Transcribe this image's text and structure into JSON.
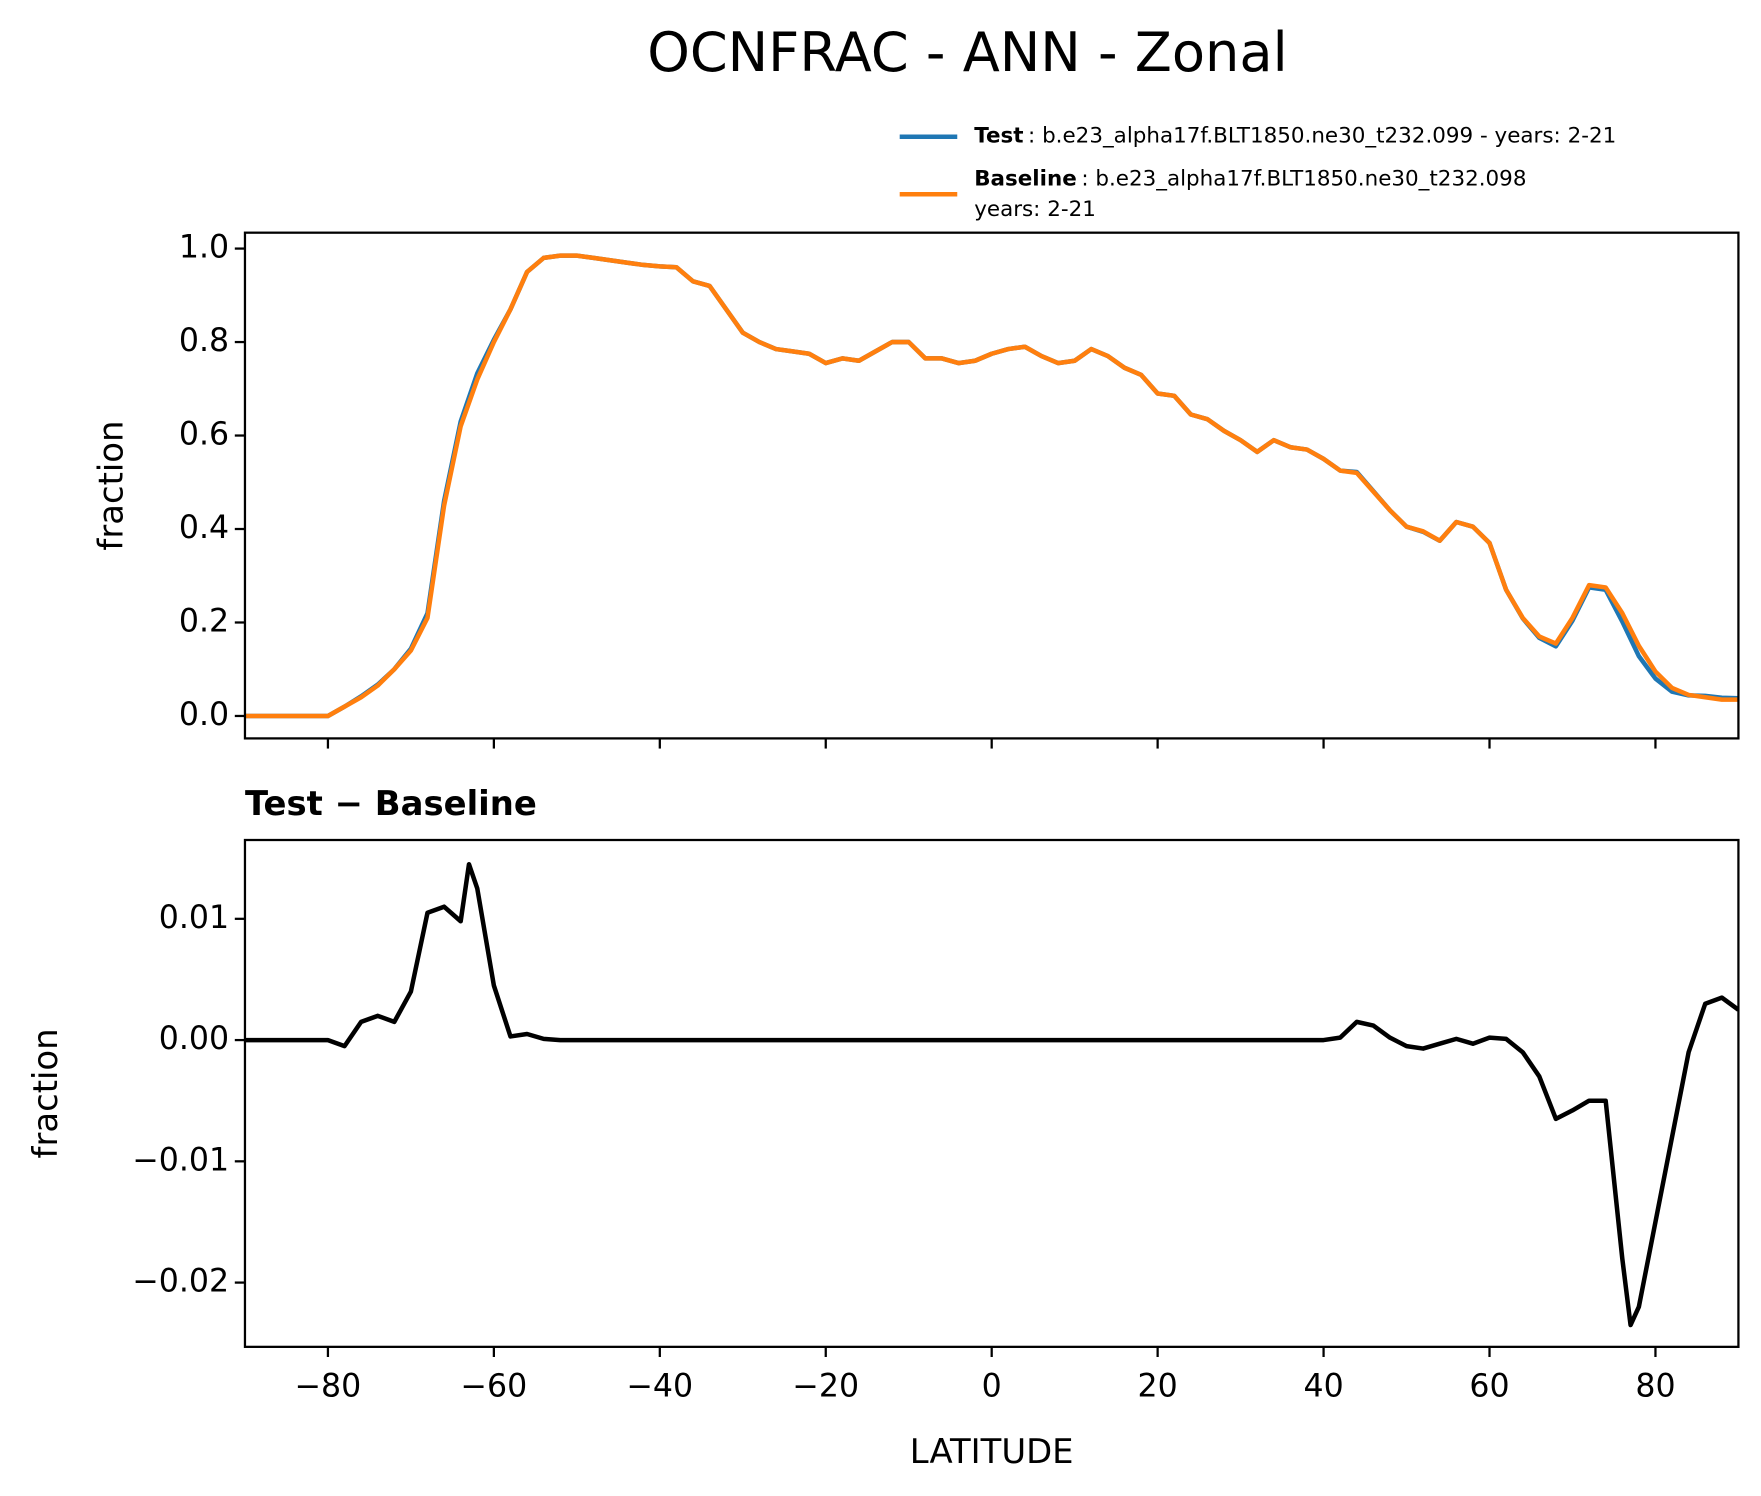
{
  "title": "OCNFRAC - ANN - Zonal",
  "chart_data": [
    {
      "type": "line",
      "ylabel": "fraction",
      "xlim": [
        -90,
        90
      ],
      "ylim": [
        -0.048,
        1.034
      ],
      "xticks": [
        {
          "value": -80,
          "label": "−80"
        },
        {
          "value": -60,
          "label": "−60"
        },
        {
          "value": -40,
          "label": "−40"
        },
        {
          "value": -20,
          "label": "−20"
        },
        0,
        20,
        40,
        60,
        80
      ],
      "yticks": [
        {
          "value": 0,
          "label": "0.0"
        },
        {
          "value": 0.2,
          "label": "0.2"
        },
        {
          "value": 0.4,
          "label": "0.4"
        },
        {
          "value": 0.6,
          "label": "0.6"
        },
        {
          "value": 0.8,
          "label": "0.8"
        },
        {
          "value": 1,
          "label": "1.0"
        }
      ],
      "legend": "upper right",
      "x": [
        -90,
        -88,
        -86,
        -84,
        -82,
        -80,
        -78,
        -76,
        -74,
        -72,
        -70,
        -68,
        -66,
        -64,
        -62,
        -60,
        -58,
        -56,
        -54,
        -52,
        -50,
        -48,
        -46,
        -44,
        -42,
        -40,
        -38,
        -36,
        -34,
        -32,
        -30,
        -28,
        -26,
        -24,
        -22,
        -20,
        -18,
        -16,
        -14,
        -12,
        -10,
        -8,
        -6,
        -4,
        -2,
        0,
        2,
        4,
        6,
        8,
        10,
        12,
        14,
        16,
        18,
        20,
        22,
        24,
        26,
        28,
        30,
        32,
        34,
        36,
        38,
        40,
        42,
        44,
        46,
        48,
        50,
        52,
        54,
        56,
        58,
        60,
        62,
        64,
        66,
        68,
        70,
        72,
        74,
        76,
        78,
        80,
        82,
        84,
        86,
        88,
        90
      ],
      "series": [
        {
          "name": "Test",
          "description": [
            ": b.e23_alpha17f.BLT1850.ne30_t232.099 - years: 2-21"
          ],
          "color": "#1f77b4",
          "values": [
            0,
            0,
            0,
            0,
            0,
            0,
            0.02,
            0.042,
            0.067,
            0.1,
            0.144,
            0.22,
            0.46,
            0.63,
            0.733,
            0.805,
            0.87,
            0.95,
            0.98,
            0.985,
            0.985,
            0.98,
            0.975,
            0.97,
            0.965,
            0.962,
            0.96,
            0.93,
            0.92,
            0.87,
            0.82,
            0.8,
            0.785,
            0.78,
            0.775,
            0.755,
            0.765,
            0.76,
            0.78,
            0.8,
            0.8,
            0.765,
            0.765,
            0.755,
            0.76,
            0.775,
            0.785,
            0.79,
            0.77,
            0.755,
            0.76,
            0.785,
            0.77,
            0.745,
            0.73,
            0.69,
            0.685,
            0.645,
            0.635,
            0.61,
            0.59,
            0.565,
            0.59,
            0.575,
            0.57,
            0.55,
            0.525,
            0.522,
            0.481,
            0.44,
            0.405,
            0.394,
            0.375,
            0.415,
            0.405,
            0.37,
            0.27,
            0.209,
            0.167,
            0.149,
            0.204,
            0.275,
            0.27,
            0.202,
            0.128,
            0.08,
            0.052,
            0.044,
            0.043,
            0.039,
            0.038
          ]
        },
        {
          "name": "Baseline",
          "description": [
            ": b.e23_alpha17f.BLT1850.ne30_t232.098",
            "years: 2-21"
          ],
          "color": "#ff7f0e",
          "values": [
            0,
            0,
            0,
            0,
            0,
            0,
            0.02,
            0.04,
            0.065,
            0.1,
            0.14,
            0.21,
            0.45,
            0.62,
            0.72,
            0.8,
            0.87,
            0.95,
            0.98,
            0.985,
            0.985,
            0.98,
            0.975,
            0.97,
            0.965,
            0.962,
            0.96,
            0.93,
            0.92,
            0.87,
            0.82,
            0.8,
            0.785,
            0.78,
            0.775,
            0.755,
            0.765,
            0.76,
            0.78,
            0.8,
            0.8,
            0.765,
            0.765,
            0.755,
            0.76,
            0.775,
            0.785,
            0.79,
            0.77,
            0.755,
            0.76,
            0.785,
            0.77,
            0.745,
            0.73,
            0.69,
            0.685,
            0.645,
            0.635,
            0.61,
            0.59,
            0.565,
            0.59,
            0.575,
            0.57,
            0.55,
            0.525,
            0.52,
            0.48,
            0.44,
            0.405,
            0.395,
            0.375,
            0.415,
            0.405,
            0.37,
            0.27,
            0.21,
            0.17,
            0.155,
            0.21,
            0.28,
            0.275,
            0.22,
            0.15,
            0.095,
            0.06,
            0.045,
            0.04,
            0.035,
            0.035
          ]
        }
      ]
    },
    {
      "type": "line",
      "title": "Test − Baseline",
      "xlabel": "LATITUDE",
      "ylabel": "fraction",
      "xlim": [
        -90,
        90
      ],
      "ylim": [
        -0.0253,
        0.0165
      ],
      "xticks": [
        {
          "value": -80,
          "label": "−80"
        },
        {
          "value": -60,
          "label": "−60"
        },
        {
          "value": -40,
          "label": "−40"
        },
        {
          "value": -20,
          "label": "−20"
        },
        0,
        20,
        40,
        60,
        80
      ],
      "yticks": [
        {
          "value": 0.01,
          "label": "0.01"
        },
        {
          "value": 0,
          "label": "0.00"
        },
        {
          "value": -0.01,
          "label": "−0.01"
        },
        {
          "value": -0.02,
          "label": "−0.02"
        }
      ],
      "x": [
        -90,
        -88,
        -86,
        -84,
        -82,
        -80,
        -78,
        -76,
        -74,
        -72,
        -70,
        -68,
        -66,
        -64,
        -63,
        -62,
        -60,
        -58,
        -56,
        -54,
        -52,
        -50,
        -48,
        -46,
        -44,
        -42,
        -40,
        -38,
        -36,
        -34,
        -32,
        -30,
        -28,
        -26,
        -24,
        -22,
        -20,
        -18,
        -16,
        -14,
        -12,
        -10,
        -8,
        -6,
        -4,
        -2,
        0,
        2,
        4,
        6,
        8,
        10,
        12,
        14,
        16,
        18,
        20,
        22,
        24,
        26,
        28,
        30,
        32,
        34,
        36,
        38,
        40,
        42,
        44,
        46,
        48,
        50,
        52,
        54,
        56,
        58,
        60,
        62,
        64,
        66,
        68,
        70,
        72,
        74,
        76,
        77,
        78,
        80,
        82,
        84,
        86,
        88,
        90
      ],
      "series": [
        {
          "name": "Test − Baseline",
          "color": "#000000",
          "values": [
            0,
            0,
            0,
            0,
            0,
            0,
            -0.0005,
            0.0015,
            0.002,
            0.0015,
            0.004,
            0.0105,
            0.011,
            0.0098,
            0.0145,
            0.0125,
            0.0045,
            0.0003,
            0.0005,
            0.0001,
            0,
            0,
            0,
            0,
            0,
            0,
            0,
            0,
            0,
            0,
            0,
            0,
            0,
            0,
            0,
            0,
            0,
            0,
            0,
            0,
            0,
            0,
            0,
            0,
            0,
            0,
            0,
            0,
            0,
            0,
            0,
            0,
            0,
            0,
            0,
            0,
            0,
            0,
            0,
            0,
            0,
            0,
            0,
            0,
            0,
            0,
            0,
            0.0002,
            0.0015,
            0.0012,
            0.0002,
            -0.0005,
            -0.0007,
            -0.0003,
            0.0001,
            -0.0003,
            0.0002,
            0.0001,
            -0.001,
            -0.003,
            -0.0065,
            -0.0058,
            -0.005,
            -0.005,
            -0.018,
            -0.0235,
            -0.022,
            -0.015,
            -0.008,
            -0.001,
            0.003,
            0.0035,
            0.0025
          ]
        }
      ]
    }
  ]
}
